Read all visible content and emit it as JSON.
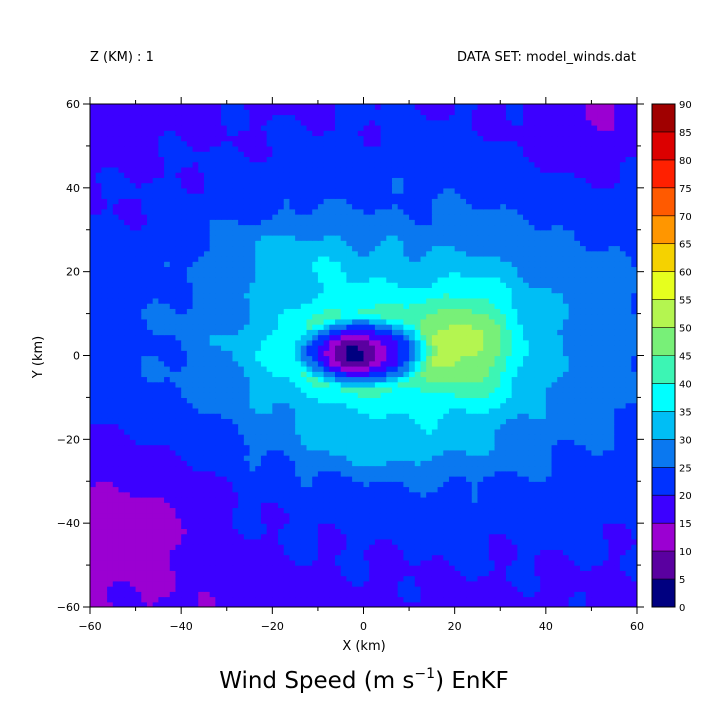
{
  "header": {
    "level_label": "Z (KM) : 1",
    "dataset_label": "DATA SET: model_winds.dat"
  },
  "title": {
    "main": "Wind Speed (m s",
    "superscript": "−1",
    "suffix": ") EnKF"
  },
  "chart_data": {
    "type": "heatmap",
    "title": "Wind Speed (m s⁻¹) EnKF",
    "xlabel": "X (km)",
    "ylabel": "Y (km)",
    "xlim": [
      -60,
      60
    ],
    "ylim": [
      -60,
      60
    ],
    "x_ticks": [
      -60,
      -40,
      -20,
      0,
      20,
      40,
      60
    ],
    "y_ticks": [
      -60,
      -40,
      -20,
      0,
      20,
      40,
      60
    ],
    "x_tick_labels": [
      "−60",
      "−40",
      "−20",
      "0",
      "20",
      "40",
      "60"
    ],
    "y_tick_labels": [
      "−60",
      "−40",
      "−20",
      "0",
      "20",
      "40",
      "60"
    ],
    "colorbar": {
      "levels": [
        0,
        5,
        10,
        15,
        20,
        25,
        30,
        35,
        40,
        45,
        50,
        55,
        60,
        65,
        70,
        75,
        80,
        85,
        90
      ],
      "colors": [
        "#000080",
        "#5a00a0",
        "#9b00d2",
        "#3c00ff",
        "#0032ff",
        "#0a78f0",
        "#00bef5",
        "#00ffff",
        "#3cf5b4",
        "#78f078",
        "#b4f550",
        "#e6ff1e",
        "#f5d200",
        "#ff9600",
        "#ff5a00",
        "#ff2000",
        "#dc0000",
        "#a00000"
      ]
    },
    "field": {
      "center_km": [
        0,
        1
      ],
      "eye_min_speed": 4,
      "rmw_km": 16,
      "max_speed": 58,
      "max_location_km": [
        24,
        0
      ],
      "description": "wind speed contours around vortex center"
    }
  }
}
